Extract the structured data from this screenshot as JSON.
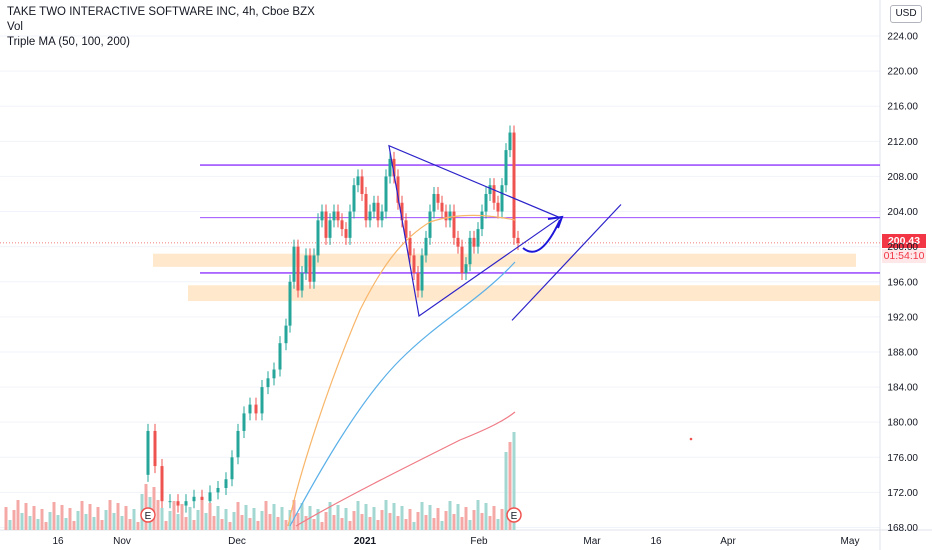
{
  "header": {
    "title": "TAKE TWO INTERACTIVE SOFTWARE INC, 4h, Cboe BZX",
    "vol_label": "Vol",
    "ma_label": "Triple MA (50, 100, 200)"
  },
  "currency": "USD",
  "last_price": "200.43",
  "countdown": "01:54:10",
  "colors": {
    "up": "#26a69a",
    "down": "#ef5350",
    "vol_up": "#a3d8d2",
    "vol_down": "#f4a9a7",
    "ma50": "#f8b66a",
    "ma100": "#5ab0e8",
    "ma200": "#ef7b86",
    "levels": "#8e34ff",
    "triangle": "#2b22c9",
    "zone": "#ffe2bf",
    "arrow": "#1d16d8"
  },
  "chart_data": {
    "type": "candlestick",
    "title": "TAKE TWO INTERACTIVE SOFTWARE INC, 4h, Cboe BZX",
    "ylim": [
      168,
      226
    ],
    "y_ticks": [
      "224.00",
      "220.00",
      "216.00",
      "212.00",
      "208.00",
      "204.00",
      "200.00",
      "196.00",
      "192.00",
      "188.00",
      "184.00",
      "180.00",
      "176.00",
      "172.00",
      "168.00"
    ],
    "x_ticks": [
      "16",
      "Nov",
      "Dec",
      "2021",
      "Feb",
      "Mar",
      "16",
      "Apr",
      "May"
    ],
    "levels": [
      209.3,
      203.3,
      197.0
    ],
    "zones": [
      [
        197.7,
        199.2
      ],
      [
        193.8,
        195.6
      ]
    ],
    "triangle": {
      "apex_top": 211.5,
      "apex_bottom": 192.1,
      "tip": 203.3
    },
    "trendline": [
      191.6,
      204.8
    ],
    "series": [
      {
        "name": "Triple MA (50, 100, 200)",
        "values": []
      }
    ],
    "earnings_markers": [
      "E",
      "E"
    ]
  }
}
